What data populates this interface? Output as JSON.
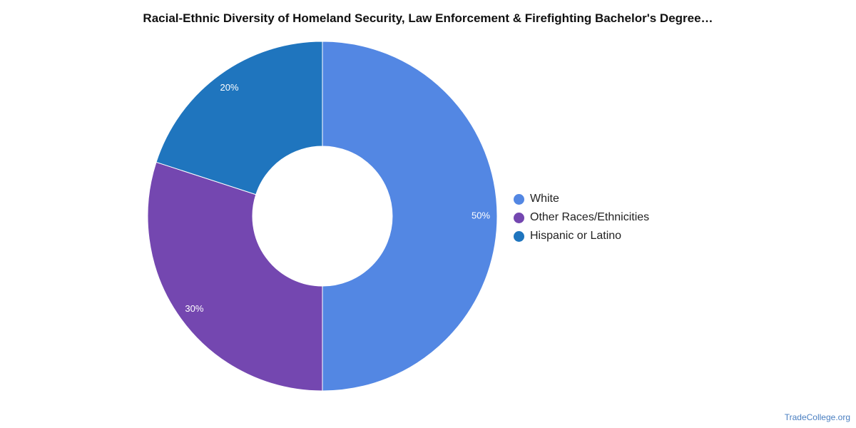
{
  "title": "Racial-Ethnic Diversity of Homeland Security, Law Enforcement & Firefighting Bachelor's Degree…",
  "watermark": "TradeCollege.org",
  "chart_data": {
    "type": "pie",
    "donut": true,
    "title": "Racial-Ethnic Diversity of Homeland Security, Law Enforcement & Firefighting Bachelor's Degree…",
    "legend_position": "right",
    "slices": [
      {
        "label": "White",
        "value": 50,
        "value_label": "50%",
        "color": "#5387e3"
      },
      {
        "label": "Other Races/Ethnicities",
        "value": 30,
        "value_label": "30%",
        "color": "#7447b0"
      },
      {
        "label": "Hispanic or Latino",
        "value": 20,
        "value_label": "20%",
        "color": "#1f75be"
      }
    ]
  }
}
